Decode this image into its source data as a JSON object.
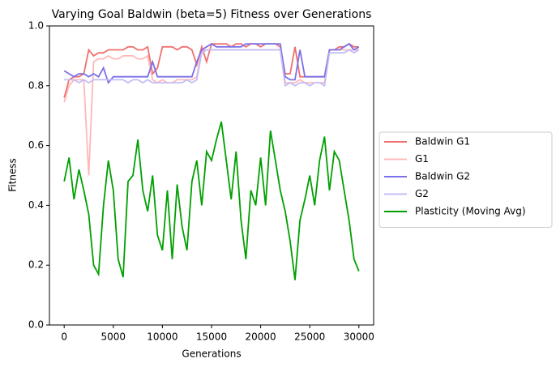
{
  "chart_data": {
    "type": "line",
    "title": "Varying Goal Baldwin (beta=5) Fitness over Generations",
    "x_label": "Generations",
    "y_label": "Fitness",
    "x": [
      0,
      500,
      1000,
      1500,
      2000,
      2500,
      3000,
      3500,
      4000,
      4500,
      5000,
      5500,
      6000,
      6500,
      7000,
      7500,
      8000,
      8500,
      9000,
      9500,
      10000,
      10500,
      11000,
      11500,
      12000,
      12500,
      13000,
      13500,
      14000,
      14500,
      15000,
      15500,
      16000,
      16500,
      17000,
      17500,
      18000,
      18500,
      19000,
      19500,
      20000,
      20500,
      21000,
      21500,
      22000,
      22500,
      23000,
      23500,
      24000,
      24500,
      25000,
      25500,
      26000,
      26500,
      27000,
      27500,
      28000,
      28500,
      29000,
      29500,
      30000
    ],
    "series": [
      {
        "name": "Baldwin G1",
        "color": "#f07070",
        "values": [
          0.76,
          0.82,
          0.83,
          0.83,
          0.84,
          0.92,
          0.9,
          0.91,
          0.91,
          0.92,
          0.92,
          0.92,
          0.92,
          0.93,
          0.93,
          0.92,
          0.92,
          0.93,
          0.84,
          0.86,
          0.93,
          0.93,
          0.93,
          0.92,
          0.93,
          0.93,
          0.92,
          0.87,
          0.93,
          0.88,
          0.94,
          0.94,
          0.94,
          0.94,
          0.93,
          0.94,
          0.94,
          0.93,
          0.94,
          0.94,
          0.93,
          0.94,
          0.94,
          0.94,
          0.93,
          0.84,
          0.84,
          0.93,
          0.83,
          0.83,
          0.83,
          0.83,
          0.83,
          0.83,
          0.92,
          0.92,
          0.93,
          0.93,
          0.94,
          0.93,
          0.93
        ]
      },
      {
        "name": "G1",
        "color": "#ffb8b8",
        "values": [
          0.745,
          0.8,
          0.82,
          0.82,
          0.82,
          0.5,
          0.88,
          0.89,
          0.89,
          0.9,
          0.89,
          0.89,
          0.9,
          0.9,
          0.9,
          0.89,
          0.89,
          0.9,
          0.82,
          0.81,
          0.82,
          0.81,
          0.81,
          0.82,
          0.82,
          0.82,
          0.82,
          0.83,
          0.92,
          0.92,
          0.92,
          0.92,
          0.92,
          0.92,
          0.92,
          0.92,
          0.92,
          0.92,
          0.92,
          0.92,
          0.92,
          0.92,
          0.92,
          0.92,
          0.92,
          0.81,
          0.81,
          0.81,
          0.82,
          0.81,
          0.81,
          0.81,
          0.81,
          0.81,
          0.92,
          0.92,
          0.92,
          0.92,
          0.92,
          0.92,
          0.92
        ]
      },
      {
        "name": "Baldwin G2",
        "color": "#7b70e8",
        "values": [
          0.85,
          0.84,
          0.83,
          0.84,
          0.84,
          0.83,
          0.84,
          0.83,
          0.86,
          0.81,
          0.83,
          0.83,
          0.83,
          0.83,
          0.83,
          0.83,
          0.83,
          0.83,
          0.88,
          0.83,
          0.83,
          0.83,
          0.83,
          0.83,
          0.83,
          0.83,
          0.83,
          0.88,
          0.92,
          0.93,
          0.94,
          0.93,
          0.93,
          0.93,
          0.93,
          0.93,
          0.93,
          0.94,
          0.94,
          0.94,
          0.94,
          0.94,
          0.94,
          0.94,
          0.94,
          0.83,
          0.82,
          0.82,
          0.92,
          0.83,
          0.83,
          0.83,
          0.83,
          0.83,
          0.92,
          0.92,
          0.92,
          0.93,
          0.94,
          0.92,
          0.93
        ]
      },
      {
        "name": "G2",
        "color": "#c2bdf5",
        "values": [
          0.82,
          0.82,
          0.82,
          0.81,
          0.82,
          0.81,
          0.82,
          0.82,
          0.82,
          0.82,
          0.82,
          0.82,
          0.82,
          0.81,
          0.82,
          0.82,
          0.81,
          0.82,
          0.81,
          0.81,
          0.81,
          0.81,
          0.81,
          0.81,
          0.81,
          0.82,
          0.81,
          0.82,
          0.91,
          0.92,
          0.92,
          0.92,
          0.92,
          0.92,
          0.92,
          0.92,
          0.92,
          0.92,
          0.92,
          0.92,
          0.92,
          0.92,
          0.92,
          0.92,
          0.92,
          0.8,
          0.81,
          0.8,
          0.81,
          0.81,
          0.8,
          0.81,
          0.81,
          0.8,
          0.91,
          0.91,
          0.91,
          0.91,
          0.92,
          0.91,
          0.92
        ]
      },
      {
        "name": "Plasticity (Moving Avg)",
        "color": "#00a000",
        "values": [
          0.48,
          0.56,
          0.42,
          0.52,
          0.45,
          0.37,
          0.2,
          0.17,
          0.4,
          0.55,
          0.45,
          0.22,
          0.16,
          0.48,
          0.5,
          0.62,
          0.45,
          0.38,
          0.5,
          0.3,
          0.25,
          0.45,
          0.22,
          0.47,
          0.33,
          0.25,
          0.48,
          0.55,
          0.4,
          0.58,
          0.55,
          0.62,
          0.68,
          0.55,
          0.42,
          0.58,
          0.35,
          0.22,
          0.45,
          0.4,
          0.56,
          0.4,
          0.65,
          0.55,
          0.45,
          0.38,
          0.28,
          0.15,
          0.35,
          0.42,
          0.5,
          0.4,
          0.55,
          0.63,
          0.45,
          0.58,
          0.55,
          0.45,
          0.35,
          0.22,
          0.18
        ]
      }
    ],
    "xlim": [
      -1500,
      31500
    ],
    "xticks": [
      0,
      5000,
      10000,
      15000,
      20000,
      25000,
      30000
    ],
    "ylim": [
      0,
      1
    ],
    "yticks": [
      {
        "value": 0,
        "label": "0.0"
      },
      0.2,
      0.4,
      0.6,
      0.8,
      {
        "value": 1,
        "label": "1.0"
      }
    ],
    "legend": "right-outside"
  }
}
